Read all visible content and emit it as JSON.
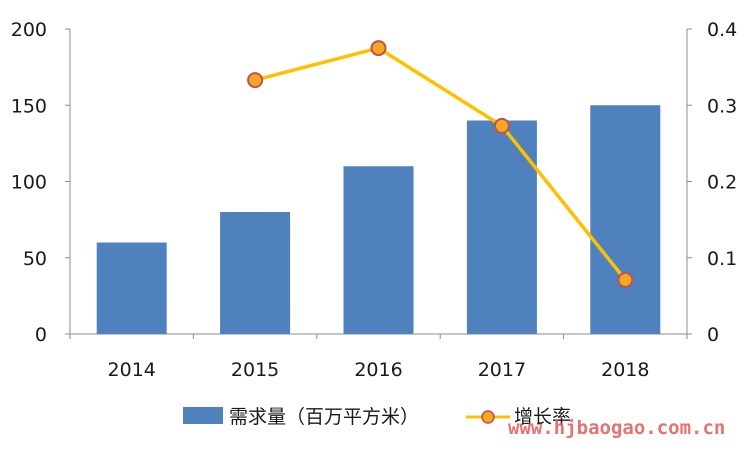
{
  "chart_data": {
    "type": "bar",
    "categories": [
      "2014",
      "2015",
      "2016",
      "2017",
      "2018"
    ],
    "series": [
      {
        "name": "需求量（百万平方米）",
        "chart_type": "bar",
        "axis": "left",
        "color": "#4f81bd",
        "values": [
          60,
          80,
          110,
          140,
          150
        ]
      },
      {
        "name": "增长率",
        "chart_type": "line",
        "axis": "right",
        "color": "#ffc000",
        "marker_color": "#f5a623",
        "marker_edge_color": "#c0504d",
        "values": [
          null,
          0.333,
          0.375,
          0.273,
          0.071
        ]
      }
    ],
    "ylim_left": [
      0,
      200
    ],
    "yticks_left": [
      "0",
      "50",
      "100",
      "150",
      "200"
    ],
    "ylim_right": [
      0,
      0.4
    ],
    "yticks_right": [
      "0",
      "0.1",
      "0.2",
      "0.3",
      "0.4"
    ],
    "grid": false,
    "legend_position": "bottom",
    "title": "",
    "xlabel": "",
    "ylabel": ""
  },
  "legend": {
    "bar_label": "需求量（百万平方米）",
    "line_label": "增长率"
  },
  "watermark": "www.hjbaogao.com.cn"
}
